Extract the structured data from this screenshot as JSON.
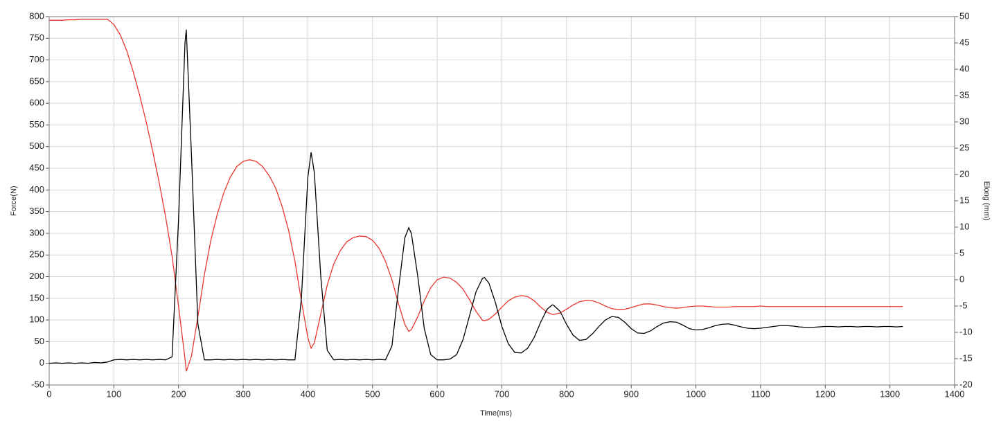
{
  "chart_data": {
    "type": "line",
    "xlabel": "Time(ms)",
    "ylabel": "Force(N)",
    "y2label": "Elong (mm)",
    "x": [
      0,
      10,
      20,
      30,
      40,
      50,
      60,
      70,
      80,
      90,
      100,
      110,
      120,
      130,
      140,
      150,
      160,
      170,
      180,
      190,
      200,
      210,
      212,
      220,
      230,
      240,
      250,
      260,
      270,
      280,
      290,
      300,
      310,
      320,
      330,
      340,
      350,
      360,
      370,
      380,
      390,
      400,
      405,
      410,
      420,
      430,
      440,
      450,
      460,
      470,
      480,
      490,
      500,
      510,
      520,
      530,
      540,
      550,
      556,
      560,
      570,
      580,
      590,
      600,
      610,
      620,
      630,
      640,
      650,
      660,
      670,
      673,
      680,
      690,
      700,
      710,
      720,
      730,
      740,
      750,
      760,
      770,
      778,
      780,
      790,
      800,
      810,
      820,
      830,
      840,
      850,
      860,
      870,
      880,
      890,
      900,
      910,
      920,
      930,
      940,
      950,
      960,
      970,
      980,
      990,
      1000,
      1010,
      1020,
      1030,
      1040,
      1050,
      1060,
      1070,
      1080,
      1090,
      1100,
      1110,
      1120,
      1130,
      1140,
      1150,
      1160,
      1170,
      1180,
      1190,
      1200,
      1210,
      1220,
      1230,
      1240,
      1250,
      1260,
      1270,
      1280,
      1290,
      1300,
      1310,
      1320
    ],
    "series": [
      {
        "color": "#000000",
        "values": [
          0,
          1,
          0,
          1,
          0,
          1,
          0,
          2,
          1,
          3,
          8,
          9,
          8,
          9,
          8,
          9,
          8,
          9,
          8,
          15,
          330,
          740,
          770,
          480,
          90,
          8,
          8,
          9,
          8,
          9,
          8,
          9,
          8,
          9,
          8,
          9,
          8,
          9,
          8,
          8,
          150,
          430,
          487,
          440,
          200,
          30,
          8,
          9,
          8,
          9,
          8,
          9,
          8,
          9,
          8,
          40,
          170,
          290,
          313,
          300,
          200,
          80,
          20,
          8,
          8,
          10,
          20,
          55,
          110,
          165,
          196,
          198,
          185,
          140,
          85,
          45,
          25,
          24,
          35,
          60,
          95,
          125,
          135,
          134,
          120,
          90,
          65,
          53,
          55,
          68,
          85,
          100,
          108,
          106,
          95,
          80,
          70,
          69,
          75,
          85,
          93,
          96,
          95,
          88,
          80,
          77,
          78,
          82,
          87,
          90,
          91,
          88,
          84,
          81,
          80,
          81,
          83,
          85,
          87,
          87,
          86,
          84,
          83,
          83,
          84,
          85,
          85,
          84,
          85,
          85,
          84,
          85,
          85,
          84,
          85,
          85,
          84,
          85
        ]
      },
      {
        "color": "#e8372f",
        "axis": "y2",
        "values": [
          49.3,
          49.3,
          49.3,
          49.4,
          49.4,
          49.5,
          49.5,
          49.5,
          49.5,
          49.5,
          48.5,
          46.5,
          43.5,
          39.5,
          35,
          30,
          24.5,
          18.5,
          12,
          4.5,
          -5,
          -15,
          -17.4,
          -14.5,
          -7,
          1,
          7.5,
          12.5,
          16.5,
          19.5,
          21.5,
          22.5,
          22.8,
          22.5,
          21.5,
          19.8,
          17.5,
          14,
          9.5,
          3.5,
          -4,
          -11,
          -13,
          -12,
          -6.5,
          -1,
          3,
          5.5,
          7.2,
          8,
          8.3,
          8.2,
          7.5,
          6,
          3.5,
          0,
          -4.5,
          -8.5,
          -9.8,
          -9.5,
          -7,
          -4,
          -1.5,
          0,
          0.5,
          0.3,
          -0.5,
          -1.8,
          -3.8,
          -6,
          -7.7,
          -7.8,
          -7.5,
          -6.5,
          -5.2,
          -4,
          -3.3,
          -3,
          -3.2,
          -4,
          -5.2,
          -6.2,
          -6.6,
          -6.6,
          -6.3,
          -5.6,
          -4.8,
          -4.2,
          -3.9,
          -4,
          -4.4,
          -5,
          -5.5,
          -5.7,
          -5.6,
          -5.3,
          -4.9,
          -4.6,
          -4.6,
          -4.8,
          -5.1,
          -5.3,
          -5.4,
          -5.3,
          -5.1,
          -5,
          -5,
          -5.1,
          -5.2,
          -5.2,
          -5.2,
          -5.1,
          -5.1,
          -5.1,
          -5.1,
          -5,
          -5.1,
          -5.1,
          -5.1,
          -5.1,
          -5.1,
          -5.1,
          -5.1,
          -5.1,
          -5.1,
          -5.1,
          -5.1,
          -5.1,
          -5.1,
          -5.1,
          -5.1,
          -5.1,
          -5.1,
          -5.1,
          -5.1,
          -5.1,
          -5.1,
          -5.1
        ]
      }
    ],
    "xlim": [
      0,
      1400
    ],
    "xticks": [
      0,
      100,
      200,
      300,
      400,
      500,
      600,
      700,
      800,
      900,
      1000,
      1100,
      1200,
      1300,
      1400
    ],
    "ylim": [
      -50,
      800
    ],
    "yticks": [
      -50,
      0,
      50,
      100,
      150,
      200,
      250,
      300,
      350,
      400,
      450,
      500,
      550,
      600,
      650,
      700,
      750,
      800
    ],
    "y2lim": [
      -20,
      50
    ],
    "y2ticks": [
      -20,
      -15,
      -10,
      -5,
      0,
      5,
      10,
      15,
      20,
      25,
      30,
      35,
      40,
      45,
      50
    ],
    "grid": true
  }
}
